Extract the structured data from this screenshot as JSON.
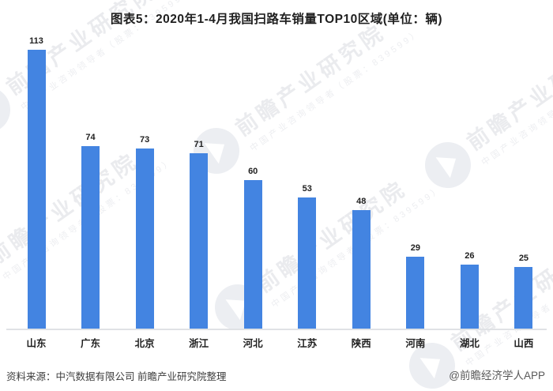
{
  "chart_data": {
    "type": "bar",
    "title": "图表5：2020年1-4月我国扫路车销量TOP10区域(单位：辆)",
    "categories": [
      "山东",
      "广东",
      "北京",
      "浙江",
      "河北",
      "江苏",
      "陕西",
      "河南",
      "湖北",
      "山西"
    ],
    "values": [
      113,
      74,
      73,
      71,
      60,
      53,
      48,
      29,
      26,
      25
    ],
    "unit": "辆",
    "xlabel": "",
    "ylabel": "",
    "ylim": [
      0,
      120
    ],
    "grid": false,
    "legend": false,
    "value_labels": true,
    "bar_color": "#4384e1",
    "label_color": "#1f1f1f"
  },
  "footer": {
    "source": "资料来源：中汽数据有限公司 前瞻产业研究院整理",
    "credit": "@前瞻经济学人APP"
  },
  "watermark": {
    "text": "前瞻产业研究院",
    "subtext": "中国产业咨询领导者（股票：839599）",
    "color": "#eaebee"
  }
}
